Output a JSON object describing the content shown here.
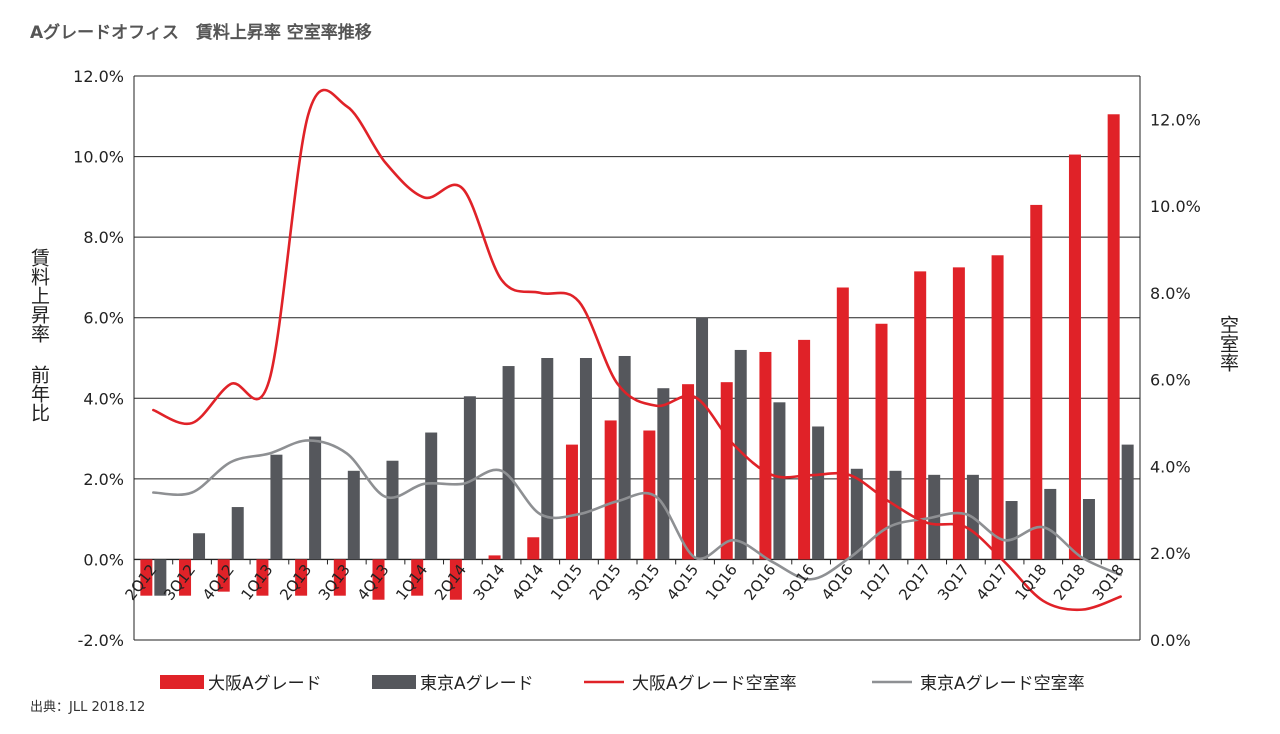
{
  "title": "Aグレードオフィス　賃料上昇率 空室率推移",
  "source": "出典：JLL 2018.12",
  "colors": {
    "osaka": "#e02228",
    "tokyo": "#55575c",
    "tokyo_line": "#8e9093",
    "grid": "#222222"
  },
  "chart_data": {
    "type": "bar",
    "categories": [
      "2Q12",
      "3Q12",
      "4Q12",
      "1Q13",
      "2Q13",
      "3Q13",
      "4Q13",
      "1Q14",
      "2Q14",
      "3Q14",
      "4Q14",
      "1Q15",
      "2Q15",
      "3Q15",
      "4Q15",
      "1Q16",
      "2Q16",
      "3Q16",
      "4Q16",
      "1Q17",
      "2Q17",
      "3Q17",
      "4Q17",
      "1Q18",
      "2Q18",
      "3Q18"
    ],
    "ylabel": "賃料上昇率 前年比",
    "y2label": "空室率",
    "ylim": [
      -2,
      12
    ],
    "y2lim": [
      0,
      13
    ],
    "yticks": [
      "12.0%",
      "10.0%",
      "8.0%",
      "6.0%",
      "4.0%",
      "2.0%",
      "0.0%",
      "-2.0%"
    ],
    "y2ticks": [
      "12.0%",
      "10.0%",
      "8.0%",
      "6.0%",
      "4.0%",
      "2.0%",
      "0.0%"
    ],
    "grid": "horizontal",
    "legend_position": "bottom",
    "series": [
      {
        "name": "大阪Aグレード",
        "kind": "bar",
        "axis": "left",
        "values": [
          -0.9,
          -0.9,
          -0.8,
          -0.9,
          -0.9,
          -0.9,
          -1.0,
          -0.9,
          -1.0,
          0.1,
          0.55,
          2.85,
          3.45,
          3.2,
          4.35,
          4.4,
          5.15,
          5.45,
          6.75,
          5.85,
          7.15,
          7.25,
          7.55,
          8.8,
          10.05,
          11.05
        ]
      },
      {
        "name": "東京Aグレード",
        "kind": "bar",
        "axis": "left",
        "values": [
          -0.9,
          0.65,
          1.3,
          2.6,
          3.05,
          2.2,
          2.45,
          3.15,
          4.05,
          4.8,
          5.0,
          5.0,
          5.05,
          4.25,
          6.0,
          5.2,
          3.9,
          3.3,
          2.25,
          2.2,
          2.1,
          2.1,
          1.45,
          1.75,
          1.5,
          2.85
        ]
      },
      {
        "name": "大阪Aグレード空室率",
        "kind": "line",
        "axis": "right",
        "values": [
          5.3,
          5.0,
          5.9,
          6.0,
          12.1,
          12.3,
          11.0,
          10.2,
          10.4,
          8.3,
          8.0,
          7.8,
          5.9,
          5.4,
          5.6,
          4.5,
          3.8,
          3.8,
          3.8,
          3.2,
          2.7,
          2.6,
          1.8,
          0.9,
          0.7,
          1.0
        ]
      },
      {
        "name": "東京Aグレード空室率",
        "kind": "line",
        "axis": "right",
        "values": [
          3.4,
          3.4,
          4.1,
          4.3,
          4.6,
          4.3,
          3.3,
          3.6,
          3.6,
          3.9,
          2.9,
          2.9,
          3.2,
          3.3,
          1.9,
          2.3,
          1.8,
          1.4,
          1.9,
          2.6,
          2.8,
          2.9,
          2.3,
          2.6,
          1.9,
          1.5
        ]
      }
    ]
  }
}
